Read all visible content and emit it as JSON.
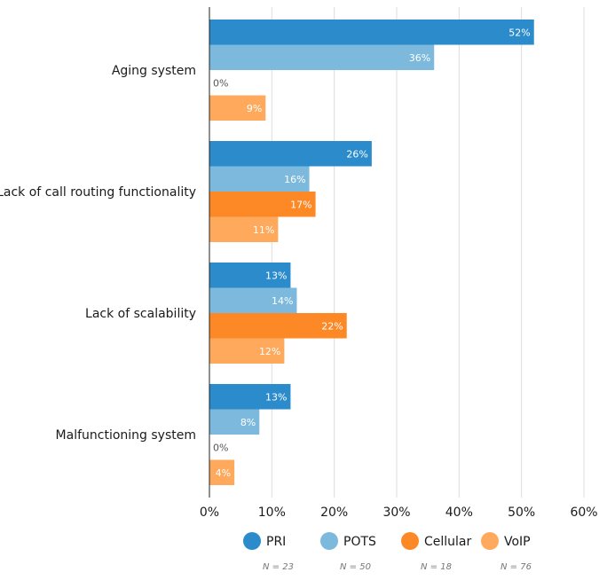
{
  "chart_data": {
    "type": "bar",
    "orientation": "horizontal",
    "categories": [
      "Aging system",
      "Lack of call routing functionality",
      "Lack of scalability",
      "Malfunctioning system"
    ],
    "series": [
      {
        "name": "PRI",
        "n_label": "N = 23",
        "color": "#2b8bcb",
        "values": [
          52,
          26,
          13,
          13
        ]
      },
      {
        "name": "POTS",
        "n_label": "N = 50",
        "color": "#7cb9dc",
        "values": [
          36,
          16,
          14,
          8
        ]
      },
      {
        "name": "Cellular",
        "n_label": "N = 18",
        "color": "#fd8826",
        "values": [
          0,
          17,
          22,
          0
        ]
      },
      {
        "name": "VoIP",
        "n_label": "N = 76",
        "color": "#fea95c",
        "values": [
          9,
          11,
          12,
          4
        ]
      }
    ],
    "value_suffix": "%",
    "xlim": [
      0,
      60
    ],
    "xticks": [
      "0%",
      "10%",
      "20%",
      "30%",
      "40%",
      "50%",
      "60%"
    ],
    "grid": true,
    "legend_position": "bottom"
  }
}
